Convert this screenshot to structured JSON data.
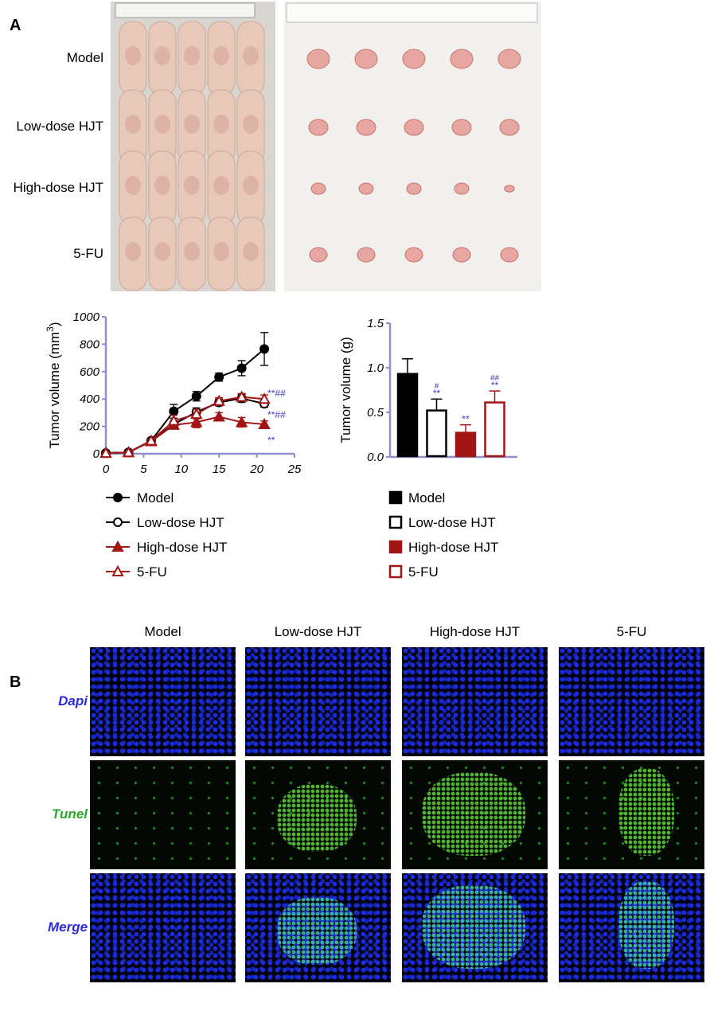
{
  "panels": {
    "a": "A",
    "b": "B"
  },
  "photo_rows": [
    "Model",
    "Low-dose HJT",
    "High-dose HJT",
    "5-FU"
  ],
  "chart_data": [
    {
      "type": "line",
      "y_label": "Tumor volume (mm",
      "y_label_sup": "3",
      "y_label_end": ")",
      "x": [
        0,
        3,
        6,
        9,
        12,
        15,
        18,
        21
      ],
      "xlim": [
        0,
        25
      ],
      "xticks": [
        0,
        5,
        10,
        15,
        20,
        25
      ],
      "ylim": [
        0,
        1000
      ],
      "yticks": [
        0,
        200,
        400,
        600,
        800,
        1000
      ],
      "axis_color": "#8f8fd0",
      "annotation_color": "#3a3acc",
      "series": [
        {
          "name": "Model",
          "color": "#000000",
          "marker": "circle",
          "filled": true,
          "values": [
            5,
            10,
            95,
            310,
            420,
            560,
            625,
            765
          ],
          "errors": [
            0,
            3,
            10,
            50,
            35,
            30,
            55,
            120
          ]
        },
        {
          "name": "Low-dose HJT",
          "color": "#000000",
          "marker": "circle",
          "filled": false,
          "values": [
            5,
            10,
            95,
            215,
            305,
            375,
            405,
            365
          ],
          "errors": [
            0,
            3,
            10,
            30,
            30,
            25,
            30,
            25
          ],
          "annotation": "**##"
        },
        {
          "name": "High-dose HJT",
          "color": "#a31515",
          "marker": "triangle",
          "filled": true,
          "values": [
            5,
            10,
            90,
            210,
            230,
            270,
            230,
            215
          ],
          "errors": [
            0,
            3,
            10,
            25,
            40,
            30,
            35,
            25
          ],
          "annotation": "**"
        },
        {
          "name": "5-FU",
          "color": "#a31515",
          "marker": "triangle",
          "filled": false,
          "values": [
            5,
            10,
            95,
            240,
            290,
            385,
            415,
            400
          ],
          "errors": [
            0,
            3,
            10,
            40,
            35,
            25,
            25,
            30
          ],
          "annotation": "**##"
        }
      ]
    },
    {
      "type": "bar",
      "y_label": "Tumor volume (g)",
      "categories": [
        "Model",
        "Low-dose HJT",
        "High-dose HJT",
        "5-FU"
      ],
      "values": [
        0.94,
        0.53,
        0.28,
        0.62
      ],
      "errors": [
        0.16,
        0.12,
        0.08,
        0.12
      ],
      "colors": [
        "#000000",
        "#ffffff",
        "#a31515",
        "#ffffff"
      ],
      "edge_colors": [
        "#000000",
        "#000000",
        "#a31515",
        "#a31515"
      ],
      "annotations": [
        null,
        "**",
        "**",
        "**"
      ],
      "annotations_top": [
        null,
        "#",
        null,
        "##"
      ],
      "ylim": [
        0,
        1.5
      ],
      "yticks": [
        {
          "value": 0,
          "label": "0.0"
        },
        0.5,
        {
          "value": 1,
          "label": "1.0"
        },
        1.5
      ],
      "axis_color": "#8f8fd0",
      "annotation_color": "#3a3acc"
    }
  ],
  "microscopy": {
    "columns": [
      "Model",
      "Low-dose HJT",
      "High-dose HJT",
      "5-FU"
    ],
    "rows": [
      {
        "label": "Dapi",
        "color": "#2a2ae0"
      },
      {
        "label": "Tunel",
        "color": "#2aa82a"
      },
      {
        "label": "Merge",
        "color": "#2a2ae0"
      }
    ]
  }
}
